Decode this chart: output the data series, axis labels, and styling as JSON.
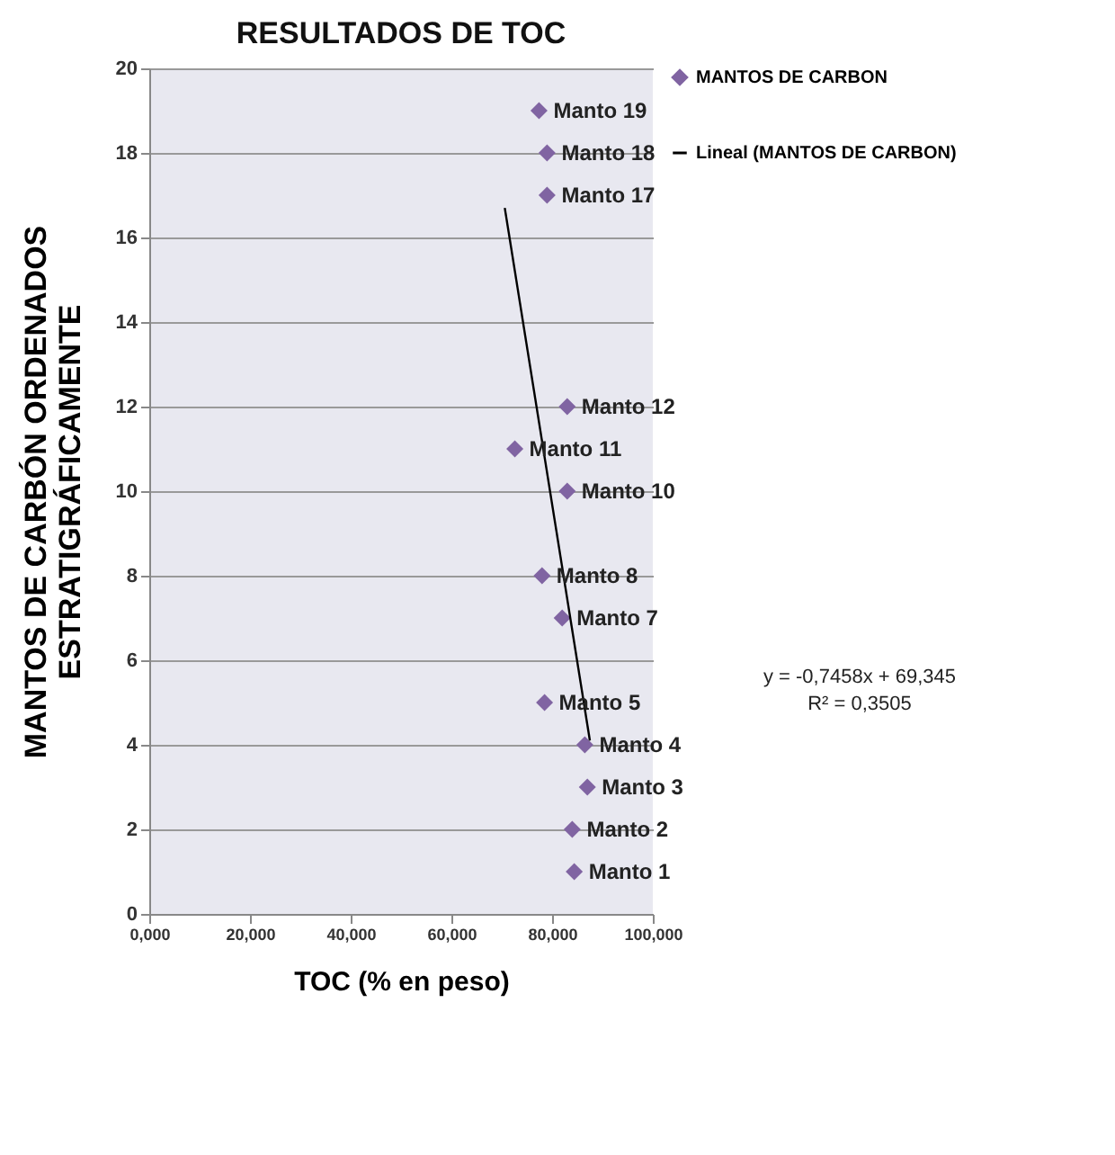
{
  "chart_data": {
    "type": "scatter",
    "title": "RESULTADOS DE TOC",
    "xlabel": "TOC (% en peso)",
    "ylabel": "MANTOS DE CARBÓN ORDENADOS\nESTRATIGRÁFICAMENTE",
    "series": [
      {
        "name": "MANTOS DE CARBON",
        "color": "#8064a2",
        "marker": "diamond",
        "x": [
          84.4,
          84,
          87,
          86.5,
          78.5,
          82,
          78,
          83,
          72.6,
          83,
          79,
          79,
          77.4
        ],
        "values": [
          1,
          2,
          3,
          4,
          5,
          7,
          8,
          10,
          11,
          12,
          17,
          18,
          19
        ]
      },
      {
        "name": "Lineal (MANTOS DE CARBON)",
        "type": "line",
        "color": "#000000",
        "marker": "none",
        "x": [
          70.6,
          87.5
        ],
        "values": [
          16.7,
          4.1
        ]
      }
    ],
    "annotations": [
      {
        "text": "Manto 1",
        "x": 84.4,
        "y": 1
      },
      {
        "text": "Manto 2",
        "x": 84,
        "y": 2
      },
      {
        "text": "Manto 3",
        "x": 87,
        "y": 3
      },
      {
        "text": "Manto 4",
        "x": 86.5,
        "y": 4
      },
      {
        "text": "Manto 5",
        "x": 78.5,
        "y": 5
      },
      {
        "text": "Manto 7",
        "x": 82,
        "y": 7
      },
      {
        "text": "Manto 8",
        "x": 78,
        "y": 8
      },
      {
        "text": "Manto 10",
        "x": 83,
        "y": 10
      },
      {
        "text": "Manto 11",
        "x": 72.6,
        "y": 11
      },
      {
        "text": "Manto 12",
        "x": 83,
        "y": 12
      },
      {
        "text": "Manto 17",
        "x": 79,
        "y": 17
      },
      {
        "text": "Manto 18",
        "x": 79,
        "y": 18
      },
      {
        "text": "Manto 19",
        "x": 77.4,
        "y": 19
      },
      "y = -0,7458x + 69,345",
      "R² = 0,3505"
    ],
    "xlim": [
      0,
      100
    ],
    "xticks": [
      {
        "value": 0,
        "label": "0,000"
      },
      {
        "value": 20,
        "label": "20,000"
      },
      {
        "value": 40,
        "label": "40,000"
      },
      {
        "value": 60,
        "label": "60,000"
      },
      {
        "value": 80,
        "label": "80,000"
      },
      {
        "value": 100,
        "label": "100,000"
      }
    ],
    "ylim": [
      0,
      20
    ],
    "yticks": [
      0,
      2,
      4,
      6,
      8,
      10,
      12,
      14,
      16,
      18,
      20
    ],
    "grid": "y",
    "legend": "right"
  }
}
